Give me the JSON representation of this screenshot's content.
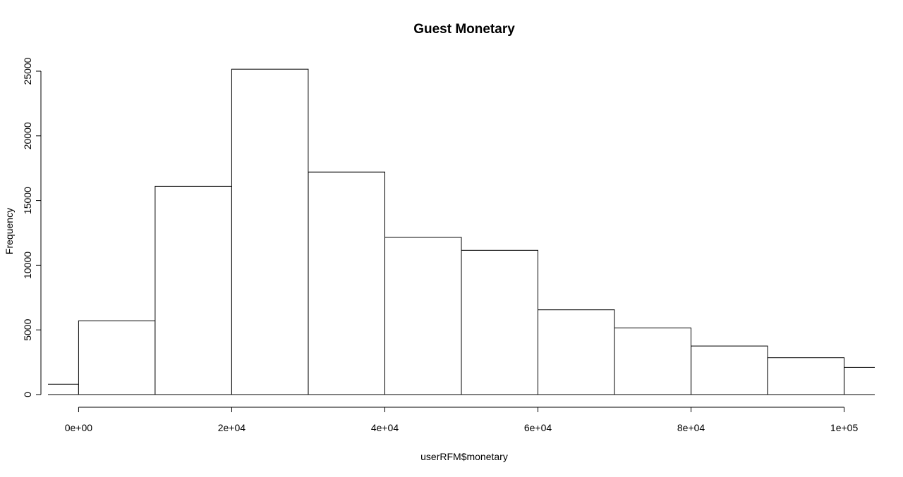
{
  "chart_data": {
    "type": "bar",
    "title": "Guest Monetary",
    "xlabel": "userRFM$monetary",
    "ylabel": "Frequency",
    "bins": [
      {
        "start": -10000,
        "end": 0,
        "count": 800
      },
      {
        "start": 0,
        "end": 10000,
        "count": 5700
      },
      {
        "start": 10000,
        "end": 20000,
        "count": 16100
      },
      {
        "start": 20000,
        "end": 30000,
        "count": 25150
      },
      {
        "start": 30000,
        "end": 40000,
        "count": 17200
      },
      {
        "start": 40000,
        "end": 50000,
        "count": 12150
      },
      {
        "start": 50000,
        "end": 60000,
        "count": 11150
      },
      {
        "start": 60000,
        "end": 70000,
        "count": 6550
      },
      {
        "start": 70000,
        "end": 80000,
        "count": 5150
      },
      {
        "start": 80000,
        "end": 90000,
        "count": 3750
      },
      {
        "start": 90000,
        "end": 100000,
        "count": 2850
      },
      {
        "start": 100000,
        "end": 110000,
        "count": 2100
      }
    ],
    "x_ticks": [
      {
        "value": 0,
        "label": "0e+00"
      },
      {
        "value": 20000,
        "label": "2e+04"
      },
      {
        "value": 40000,
        "label": "4e+04"
      },
      {
        "value": 60000,
        "label": "6e+04"
      },
      {
        "value": 80000,
        "label": "8e+04"
      },
      {
        "value": 100000,
        "label": "1e+05"
      }
    ],
    "y_ticks": [
      {
        "value": 0,
        "label": "0"
      },
      {
        "value": 5000,
        "label": "5000"
      },
      {
        "value": 10000,
        "label": "10000"
      },
      {
        "value": 15000,
        "label": "15000"
      },
      {
        "value": 20000,
        "label": "20000"
      },
      {
        "value": 25000,
        "label": "25000"
      }
    ],
    "xlim": [
      -4000,
      104000
    ],
    "ylim": [
      0,
      25000
    ],
    "grid": false,
    "bar_fill": "#ffffff",
    "bar_stroke": "#000000"
  }
}
